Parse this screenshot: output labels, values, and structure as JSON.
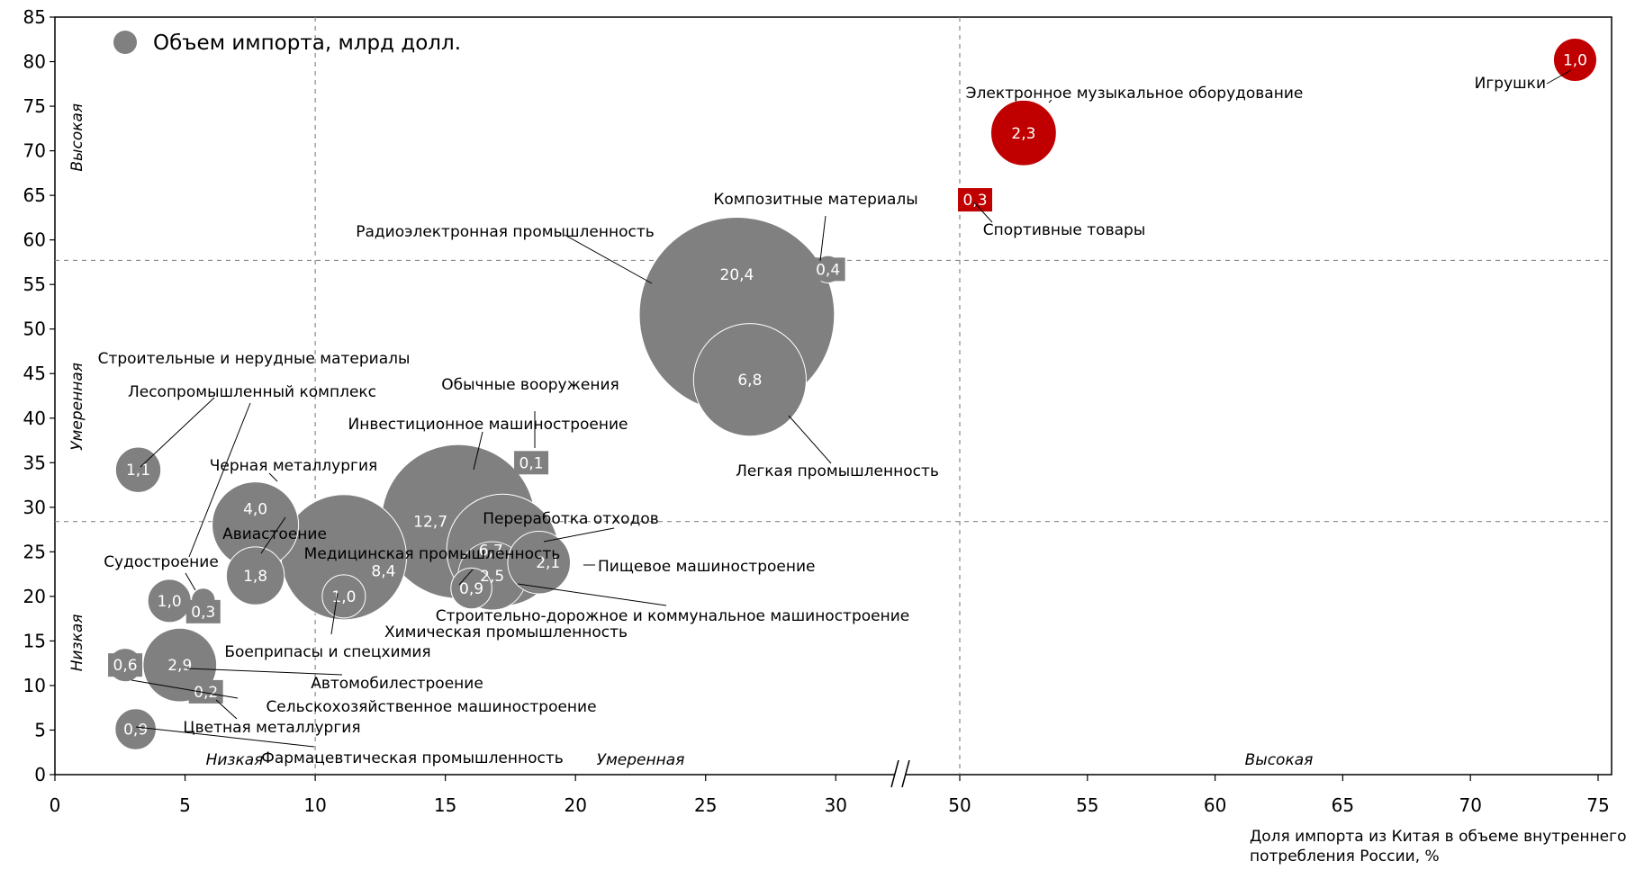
{
  "chart_data": {
    "type": "bubble",
    "legend": "Объем импорта, млрд долл.",
    "xlabel": "Доля импорта из Китая в объеме внутреннего потребления России, %",
    "ylabel": "",
    "x_segments": [
      [
        0,
        32
      ],
      [
        50,
        75
      ]
    ],
    "xticks": [
      0,
      5,
      10,
      15,
      20,
      25,
      30,
      50,
      55,
      60,
      65,
      70,
      75
    ],
    "ylim": [
      0,
      85
    ],
    "yticks": [
      0,
      5,
      10,
      15,
      20,
      25,
      30,
      35,
      40,
      45,
      50,
      55,
      60,
      65,
      70,
      75,
      80,
      85
    ],
    "value_labels": [
      "1,0",
      "2,3",
      "0,3",
      "0,4",
      "20,4",
      "6,8",
      "0,1",
      "12,7",
      "6,7",
      "2,1",
      "2,5",
      "0,9",
      "4,0",
      "1,8",
      "8,4",
      "1,0",
      "1,1",
      "1,0",
      "0,3",
      "2,9",
      "0,6",
      "0,2",
      "0,9"
    ],
    "x_zones": [
      "Низкая",
      "Умеренная",
      "Высокая"
    ],
    "y_zones": [
      "Низкая",
      "Умеренная",
      "Высокая"
    ],
    "series": [
      {
        "name": "Игрушки",
        "x": 74.1,
        "y": 80.2,
        "size": 1.0,
        "color": "#c00000"
      },
      {
        "name": "Электронное музыкальное оборудование",
        "x": 52.5,
        "y": 72.0,
        "size": 2.3,
        "color": "#c00000"
      },
      {
        "name": "Спортивные товары",
        "x": 50.6,
        "y": 64.5,
        "size": 0.3,
        "color": "#c00000"
      },
      {
        "name": "Композитные материалы",
        "x": 29.7,
        "y": 56.7,
        "size": 0.4,
        "color": "#808080"
      },
      {
        "name": "Радиоэлектронная промышленность",
        "x": 26.2,
        "y": 51.6,
        "size": 20.4,
        "color": "#808080"
      },
      {
        "name": "Легкая промышленность",
        "x": 26.7,
        "y": 44.3,
        "size": 6.8,
        "color": "#808080"
      },
      {
        "name": "Обычные вооружения",
        "x": 18.3,
        "y": 35.0,
        "size": 0.1,
        "color": "#808080"
      },
      {
        "name": "Инвестиционное машиностроение",
        "x": 15.5,
        "y": 28.4,
        "size": 12.7,
        "color": "#808080"
      },
      {
        "name": "Переработка отходов",
        "x": 17.2,
        "y": 25.2,
        "size": 6.7,
        "color": "#808080"
      },
      {
        "name": "Пищевое машиностроение",
        "x": 18.6,
        "y": 23.8,
        "size": 2.1,
        "color": "#808080"
      },
      {
        "name": "Строительно-дорожное и коммунальное машиностроение",
        "x": 16.8,
        "y": 22.3,
        "size": 2.5,
        "color": "#808080"
      },
      {
        "name": "Химическая промышленность",
        "x": 16.0,
        "y": 20.9,
        "size": 0.9,
        "color": "#808080"
      },
      {
        "name": "Черная металлургия",
        "x": 7.7,
        "y": 28.0,
        "size": 4.0,
        "color": "#808080"
      },
      {
        "name": "Авиастоение",
        "x": 7.7,
        "y": 22.3,
        "size": 1.8,
        "color": "#808080"
      },
      {
        "name": "Медицинская промышленность",
        "x": 11.1,
        "y": 24.4,
        "size": 8.4,
        "color": "#808080"
      },
      {
        "name": "Боеприпасы и спецхимия",
        "x": 11.1,
        "y": 20.0,
        "size": 1.0,
        "color": "#808080"
      },
      {
        "name": "Строительные и нерудные материалы",
        "x": 3.2,
        "y": 34.2,
        "size": 1.1,
        "color": "#808080"
      },
      {
        "name": "Лесопромышленный комплекс",
        "x": 4.4,
        "y": 19.5,
        "size": 1.0,
        "color": "#808080"
      },
      {
        "name": "Судостроение",
        "x": 5.7,
        "y": 19.6,
        "size": 0.3,
        "color": "#808080"
      },
      {
        "name": "Автомобилестроение",
        "x": 4.8,
        "y": 12.3,
        "size": 2.9,
        "color": "#808080"
      },
      {
        "name": "Сельскохозяйственное машиностроение",
        "x": 2.7,
        "y": 12.3,
        "size": 0.6,
        "color": "#808080"
      },
      {
        "name": "Цветная металлургия",
        "x": 5.8,
        "y": 9.3,
        "size": 0.2,
        "color": "#808080"
      },
      {
        "name": "Фармацевтическая промышленность",
        "x": 3.1,
        "y": 5.1,
        "size": 0.9,
        "color": "#808080"
      }
    ]
  }
}
